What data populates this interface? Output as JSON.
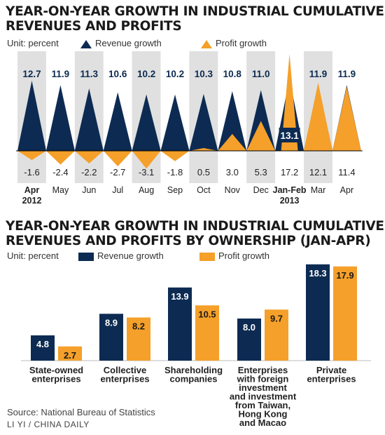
{
  "colors": {
    "revenue": "#0d2b52",
    "profit": "#f5a02a",
    "band": "#e0e0e0"
  },
  "chart_data": [
    {
      "type": "area",
      "title": "YEAR-ON-YEAR GROWTH IN INDUSTRIAL CUMULATIVE REVENUES AND PROFITS",
      "unit": "Unit: percent",
      "legend": [
        "Revenue growth",
        "Profit growth"
      ],
      "legend_placement": "top",
      "categories": [
        {
          "line1": "Apr",
          "line2": "2012"
        },
        {
          "line1": "May",
          "line2": ""
        },
        {
          "line1": "Jun",
          "line2": ""
        },
        {
          "line1": "Jul",
          "line2": ""
        },
        {
          "line1": "Aug",
          "line2": ""
        },
        {
          "line1": "Sep",
          "line2": ""
        },
        {
          "line1": "Oct",
          "line2": ""
        },
        {
          "line1": "Nov",
          "line2": ""
        },
        {
          "line1": "Dec",
          "line2": ""
        },
        {
          "line1": "Jan-Feb",
          "line2": "2013"
        },
        {
          "line1": "Mar",
          "line2": ""
        },
        {
          "line1": "Apr",
          "line2": ""
        }
      ],
      "series": [
        {
          "name": "Revenue growth",
          "values": [
            12.7,
            11.9,
            11.3,
            10.6,
            10.2,
            10.2,
            10.3,
            10.8,
            11.0,
            13.1,
            11.9,
            11.9
          ],
          "labels": [
            "12.7",
            "11.9",
            "11.3",
            "10.6",
            "10.2",
            "10.2",
            "10.3",
            "10.8",
            "11.0",
            "13.1",
            "11.9",
            "11.9"
          ]
        },
        {
          "name": "Profit growth",
          "values": [
            -1.6,
            -2.4,
            -2.2,
            -2.7,
            -3.1,
            -1.8,
            0.5,
            3.0,
            5.3,
            17.2,
            12.1,
            11.4
          ],
          "labels": [
            "-1.6",
            "-2.4",
            "-2.2",
            "-2.7",
            "-3.1",
            "-1.8",
            "0.5",
            "3.0",
            "5.3",
            "17.2",
            "12.1",
            "11.4"
          ]
        }
      ]
    },
    {
      "type": "bar",
      "title": "YEAR-ON-YEAR GROWTH IN INDUSTRIAL CUMULATIVE REVENUES AND PROFITS BY OWNERSHIP (JAN-APR)",
      "unit": "Unit: percent",
      "legend": [
        "Revenue growth",
        "Profit growth"
      ],
      "legend_placement": "top",
      "categories": [
        [
          "State-owned",
          "enterprises"
        ],
        [
          "Collective",
          "enterprises"
        ],
        [
          "Shareholding",
          "companies"
        ],
        [
          "Enterprises",
          "with foreign",
          "investment",
          "and investment",
          "from Taiwan,",
          "Hong Kong",
          "and Macao"
        ],
        [
          "Private",
          "enterprises"
        ]
      ],
      "series": [
        {
          "name": "Revenue growth",
          "values": [
            4.8,
            8.9,
            13.9,
            8.0,
            18.3
          ],
          "labels": [
            "4.8",
            "8.9",
            "13.9",
            "8.0",
            "18.3"
          ]
        },
        {
          "name": "Profit growth",
          "values": [
            2.7,
            8.2,
            10.5,
            9.7,
            17.9
          ],
          "labels": [
            "2.7",
            "8.2",
            "10.5",
            "9.7",
            "17.9"
          ]
        }
      ]
    }
  ],
  "footer": {
    "source": "Source: National Bureau of Statistics",
    "credit": "LI YI / CHINA DAILY"
  }
}
